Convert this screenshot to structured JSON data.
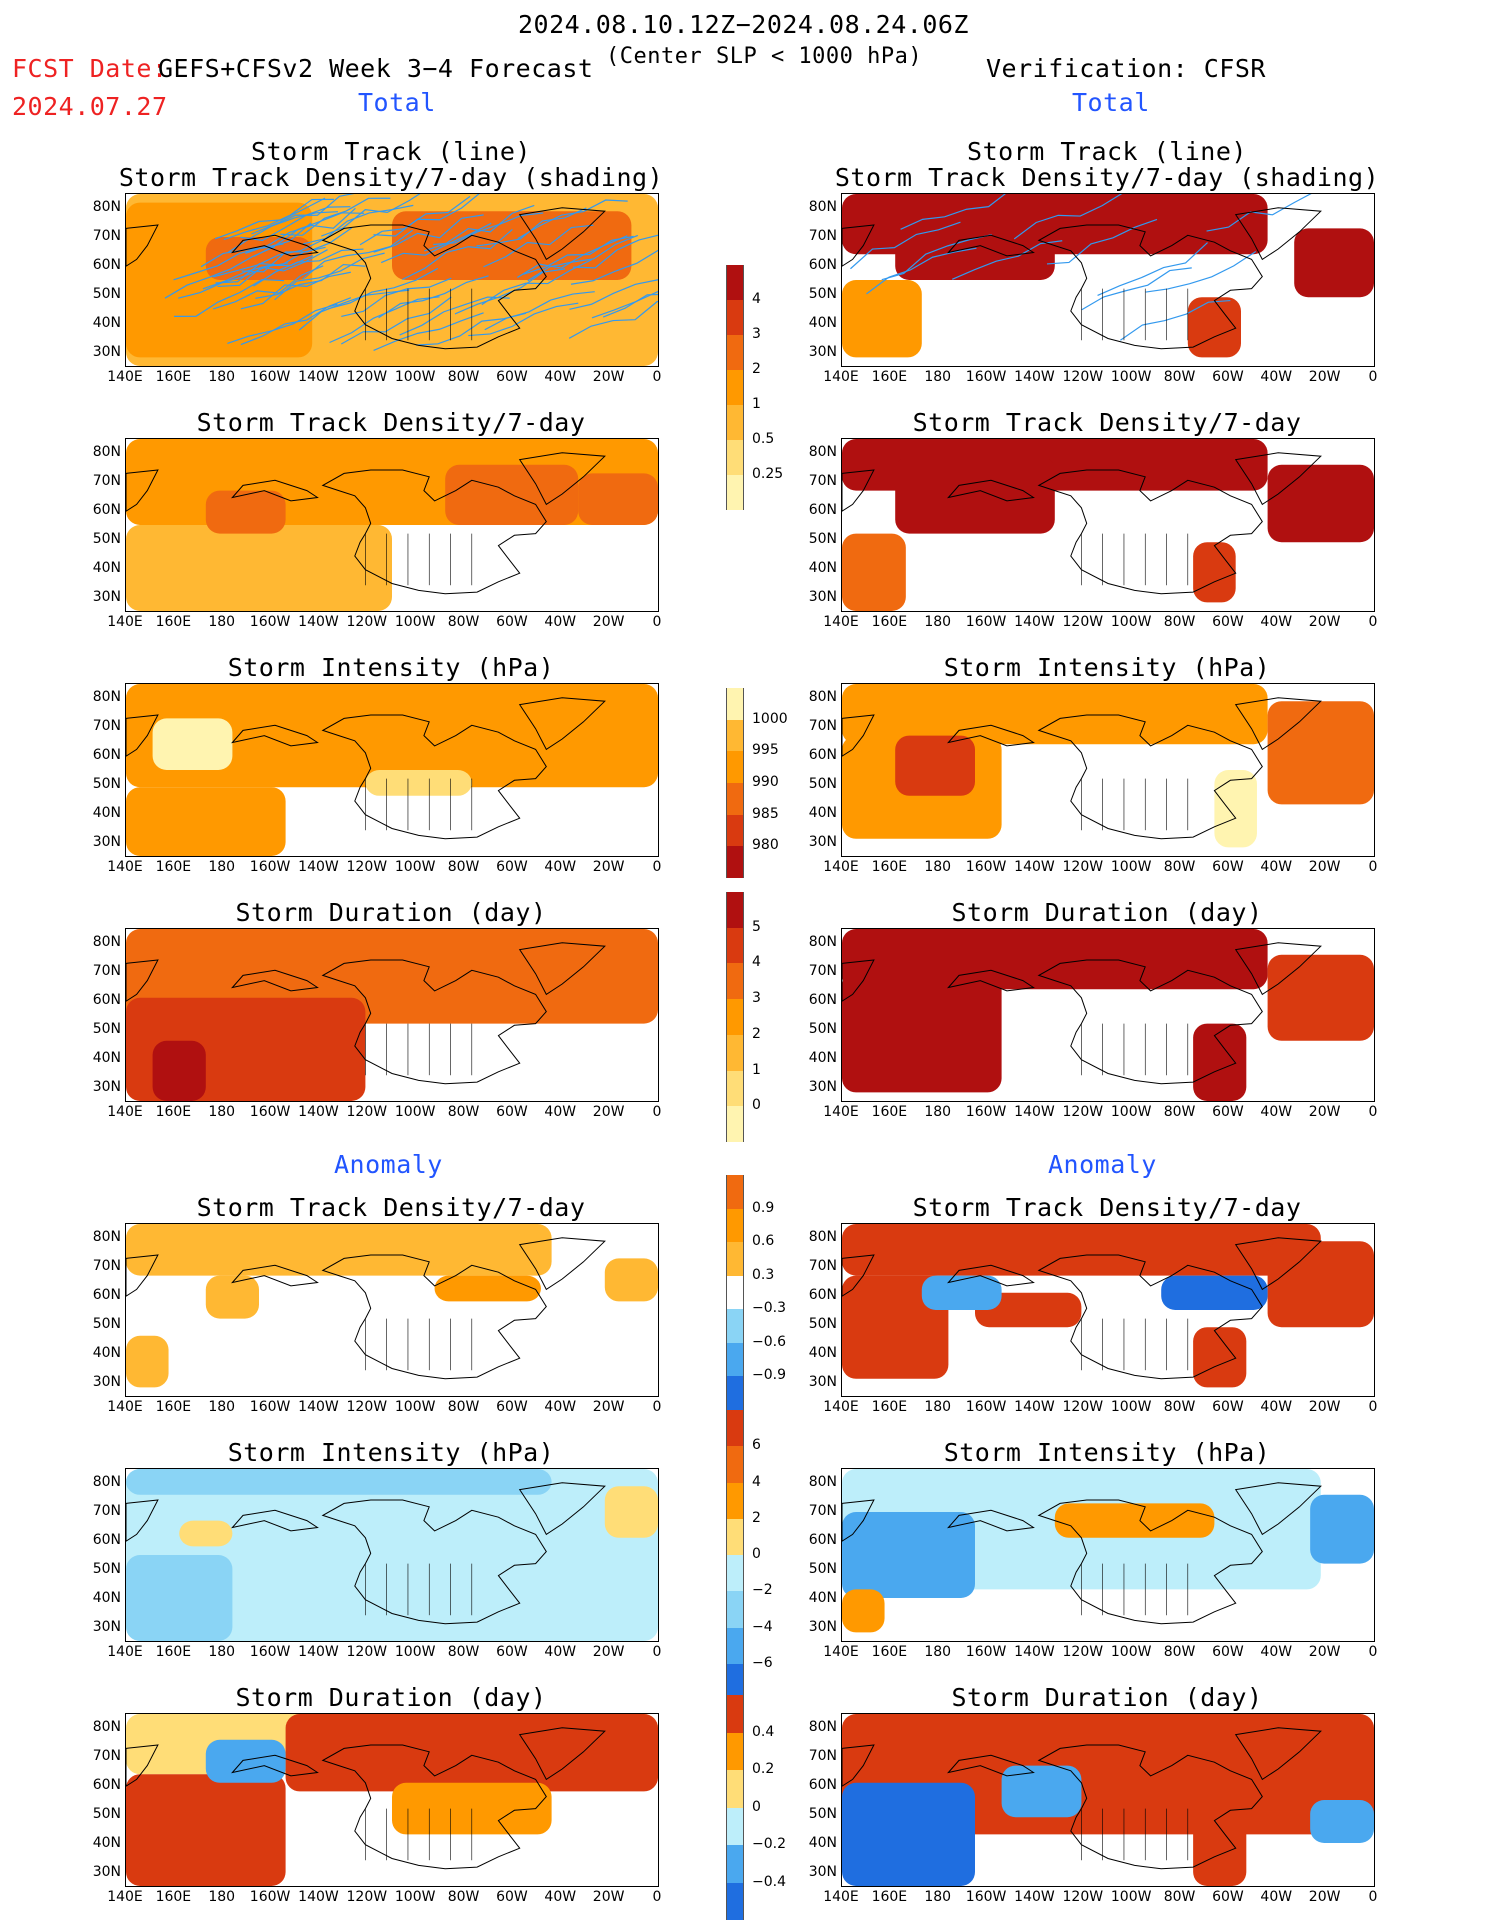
{
  "header": {
    "date_range": "2024.08.10.12Z−2024.08.24.06Z",
    "fcst_label": "FCST Date:",
    "fcst_date": "2024.07.27",
    "model": "GEFS+CFSv2 Week 3−4 Forecast",
    "criterion": "(Center SLP < 1000 hPa)",
    "verification": "Verification: CFSR"
  },
  "sections": {
    "total_left": "Total",
    "total_right": "Total",
    "anomaly_left": "Anomaly",
    "anomaly_right": "Anomaly"
  },
  "titles": {
    "track_line": "Storm Track (line)",
    "track_density_shading": "Storm Track Density/7-day (shading)",
    "track_density": "Storm Track Density/7-day",
    "intensity": "Storm Intensity (hPa)",
    "duration": "Storm Duration (day)"
  },
  "axes": {
    "lat_labels": [
      "80N",
      "70N",
      "60N",
      "50N",
      "40N",
      "30N"
    ],
    "lon_labels": [
      "140E",
      "160E",
      "180",
      "160W",
      "140W",
      "120W",
      "100W",
      "80W",
      "60W",
      "40W",
      "20W",
      "0"
    ]
  },
  "colorbars": {
    "density_total": [
      "4",
      "3",
      "2",
      "1",
      "0.5",
      "0.25"
    ],
    "intensity_total": [
      "1000",
      "995",
      "990",
      "985",
      "980"
    ],
    "duration_total": [
      "5",
      "4",
      "3",
      "2",
      "1",
      "0"
    ],
    "density_anom": [
      "0.9",
      "0.6",
      "0.3",
      "−0.3",
      "−0.6",
      "−0.9"
    ],
    "intensity_anom": [
      "6",
      "4",
      "2",
      "0",
      "−2",
      "−4",
      "−6"
    ],
    "duration_anom": [
      "0.4",
      "0.2",
      "0",
      "−0.2",
      "−0.4"
    ]
  },
  "colors": {
    "warm": [
      "#fff4b0",
      "#ffdd77",
      "#ffb833",
      "#ff9900",
      "#f06a10",
      "#d93a10",
      "#b01010"
    ],
    "cool": [
      "#bdeefa",
      "#8ad4f5",
      "#4aa8ef",
      "#1f6ee0"
    ],
    "track_line": "#3399ee",
    "coast": "#000000"
  }
}
